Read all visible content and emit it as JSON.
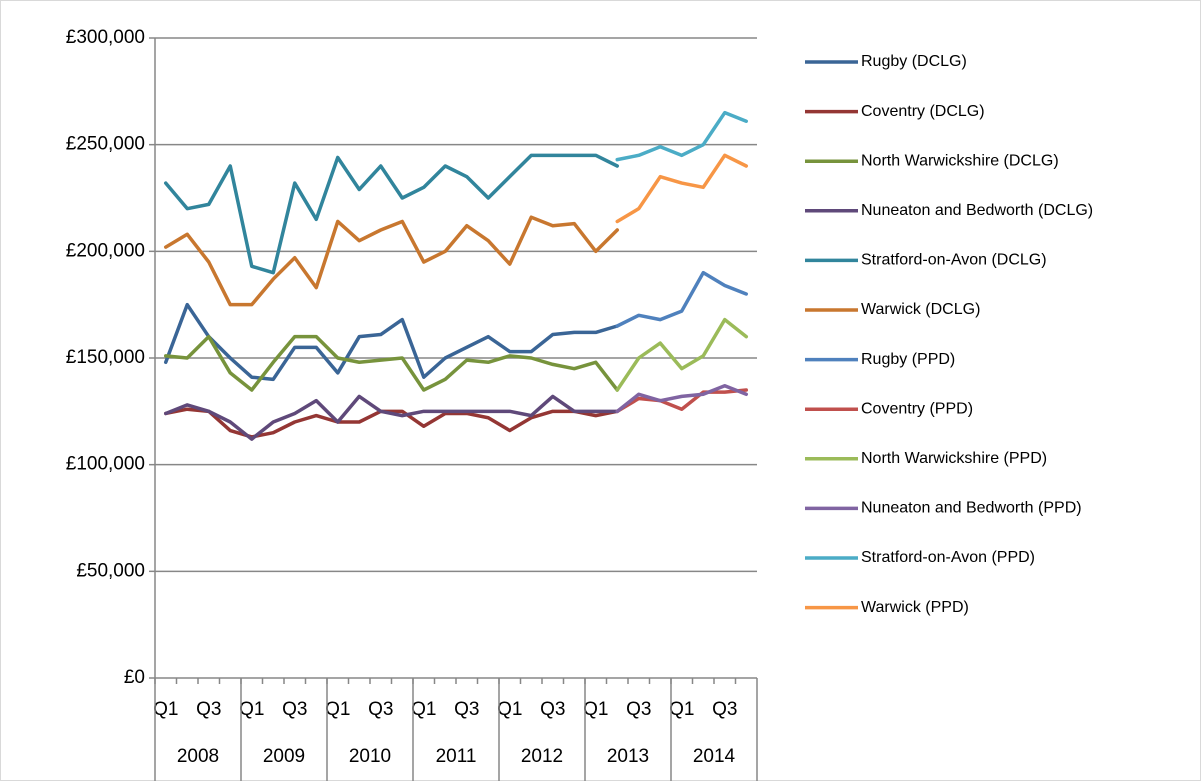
{
  "chart_data": {
    "type": "line",
    "categories": [
      "Q1",
      null,
      "Q3",
      null,
      "Q1",
      null,
      "Q3",
      null,
      "Q1",
      null,
      "Q3",
      null,
      "Q1",
      null,
      "Q3",
      null,
      "Q1",
      null,
      "Q3",
      null,
      "Q1",
      null,
      "Q3",
      null,
      "Q1",
      null,
      "Q3",
      null
    ],
    "groups": [
      "2008",
      "2009",
      "2010",
      "2011",
      "2012",
      "2013",
      "2014"
    ],
    "ylim": [
      0,
      300000
    ],
    "yticks": [
      {
        "value": 0,
        "label": "£0"
      },
      {
        "value": 50000,
        "label": "£50,000"
      },
      {
        "value": 100000,
        "label": "£100,000"
      },
      {
        "value": 150000,
        "label": "£150,000"
      },
      {
        "value": 200000,
        "label": "£200,000"
      },
      {
        "value": 250000,
        "label": "£250,000"
      },
      {
        "value": 300000,
        "label": "£300,000"
      }
    ],
    "grid": true,
    "legend": "right",
    "series": [
      {
        "name": "Rugby (DCLG)",
        "color": "#3a6596",
        "values": [
          148000,
          175000,
          160000,
          150000,
          141000,
          140000,
          155000,
          155000,
          143000,
          160000,
          161000,
          168000,
          141000,
          150000,
          155000,
          160000,
          153000,
          153000,
          161000,
          162000,
          162000,
          165000,
          null,
          null,
          null,
          null,
          null,
          null
        ]
      },
      {
        "name": "Coventry (DCLG)",
        "color": "#943634",
        "values": [
          124000,
          126000,
          125000,
          116000,
          113000,
          115000,
          120000,
          123000,
          120000,
          120000,
          125000,
          125000,
          118000,
          124000,
          124000,
          122000,
          116000,
          122000,
          125000,
          125000,
          123000,
          125000,
          null,
          null,
          null,
          null,
          null,
          null
        ]
      },
      {
        "name": "North Warwickshire (DCLG)",
        "color": "#77933c",
        "values": [
          151000,
          150000,
          160000,
          143000,
          135000,
          148000,
          160000,
          160000,
          150000,
          148000,
          149000,
          150000,
          135000,
          140000,
          149000,
          148000,
          151000,
          150000,
          147000,
          145000,
          148000,
          135000,
          null,
          null,
          null,
          null,
          null,
          null
        ]
      },
      {
        "name": "Nuneaton and Bedworth (DCLG)",
        "color": "#5f497a",
        "values": [
          124000,
          128000,
          125000,
          120000,
          112000,
          120000,
          124000,
          130000,
          120000,
          132000,
          125000,
          123000,
          125000,
          125000,
          125000,
          125000,
          125000,
          123000,
          132000,
          125000,
          125000,
          125000,
          null,
          null,
          null,
          null,
          null,
          null
        ]
      },
      {
        "name": "Stratford-on-Avon (DCLG)",
        "color": "#31859c",
        "values": [
          232000,
          220000,
          222000,
          240000,
          193000,
          190000,
          232000,
          215000,
          244000,
          229000,
          240000,
          225000,
          230000,
          240000,
          235000,
          225000,
          235000,
          245000,
          245000,
          245000,
          245000,
          240000,
          null,
          null,
          null,
          null,
          null,
          null
        ]
      },
      {
        "name": "Warwick (DCLG)",
        "color": "#c8772f",
        "values": [
          202000,
          208000,
          195000,
          175000,
          175000,
          187000,
          197000,
          183000,
          214000,
          205000,
          210000,
          214000,
          195000,
          200000,
          212000,
          205000,
          194000,
          216000,
          212000,
          213000,
          200000,
          210000,
          null,
          null,
          null,
          null,
          null,
          null
        ]
      },
      {
        "name": "Rugby (PPD)",
        "color": "#4f81bd",
        "values": [
          null,
          null,
          null,
          null,
          null,
          null,
          null,
          null,
          null,
          null,
          null,
          null,
          null,
          null,
          null,
          null,
          null,
          null,
          null,
          null,
          null,
          165000,
          170000,
          168000,
          172000,
          190000,
          184000,
          180000
        ]
      },
      {
        "name": "Coventry (PPD)",
        "color": "#c0504d",
        "values": [
          null,
          null,
          null,
          null,
          null,
          null,
          null,
          null,
          null,
          null,
          null,
          null,
          null,
          null,
          null,
          null,
          null,
          null,
          null,
          null,
          null,
          125000,
          131000,
          130000,
          126000,
          134000,
          134000,
          135000
        ]
      },
      {
        "name": "North Warwickshire (PPD)",
        "color": "#9bbb59",
        "values": [
          null,
          null,
          null,
          null,
          null,
          null,
          null,
          null,
          null,
          null,
          null,
          null,
          null,
          null,
          null,
          null,
          null,
          null,
          null,
          null,
          null,
          135000,
          150000,
          157000,
          145000,
          151000,
          168000,
          160000
        ]
      },
      {
        "name": "Nuneaton and Bedworth (PPD)",
        "color": "#8064a2",
        "values": [
          null,
          null,
          null,
          null,
          null,
          null,
          null,
          null,
          null,
          null,
          null,
          null,
          null,
          null,
          null,
          null,
          null,
          null,
          null,
          null,
          null,
          125000,
          133000,
          130000,
          132000,
          133000,
          137000,
          133000
        ]
      },
      {
        "name": "Stratford-on-Avon (PPD)",
        "color": "#4bacc6",
        "values": [
          null,
          null,
          null,
          null,
          null,
          null,
          null,
          null,
          null,
          null,
          null,
          null,
          null,
          null,
          null,
          null,
          null,
          null,
          null,
          null,
          null,
          243000,
          245000,
          249000,
          245000,
          250000,
          265000,
          261000
        ]
      },
      {
        "name": "Warwick (PPD)",
        "color": "#f79646",
        "values": [
          null,
          null,
          null,
          null,
          null,
          null,
          null,
          null,
          null,
          null,
          null,
          null,
          null,
          null,
          null,
          null,
          null,
          null,
          null,
          null,
          null,
          214000,
          220000,
          235000,
          232000,
          230000,
          245000,
          240000
        ]
      }
    ]
  }
}
